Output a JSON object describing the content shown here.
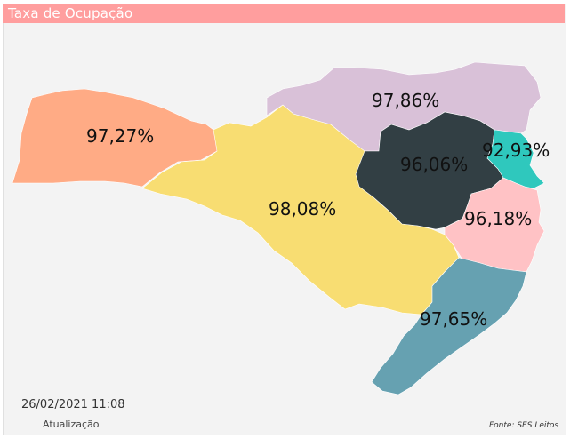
{
  "title": "Taxa de Ocupação",
  "regions": [
    {
      "id": "oeste",
      "value": "97,27%",
      "color": "#ffab85"
    },
    {
      "id": "meio-oeste",
      "value": "98,08%",
      "color": "#f8dd72"
    },
    {
      "id": "norte",
      "value": "97,86%",
      "color": "#d9c1d8"
    },
    {
      "id": "vale-itajai",
      "value": "96,06%",
      "color": "#323f44"
    },
    {
      "id": "litoral-norte",
      "value": "92,93%",
      "color": "#2fc8bd"
    },
    {
      "id": "grande-florianopolis",
      "value": "96,18%",
      "color": "#ffc2c5"
    },
    {
      "id": "sul",
      "value": "97,65%",
      "color": "#66a1b1"
    }
  ],
  "footer": {
    "date": "26/02/2021 11:08",
    "update_label": "Atualização",
    "source": "Fonte: SES Leitos"
  }
}
